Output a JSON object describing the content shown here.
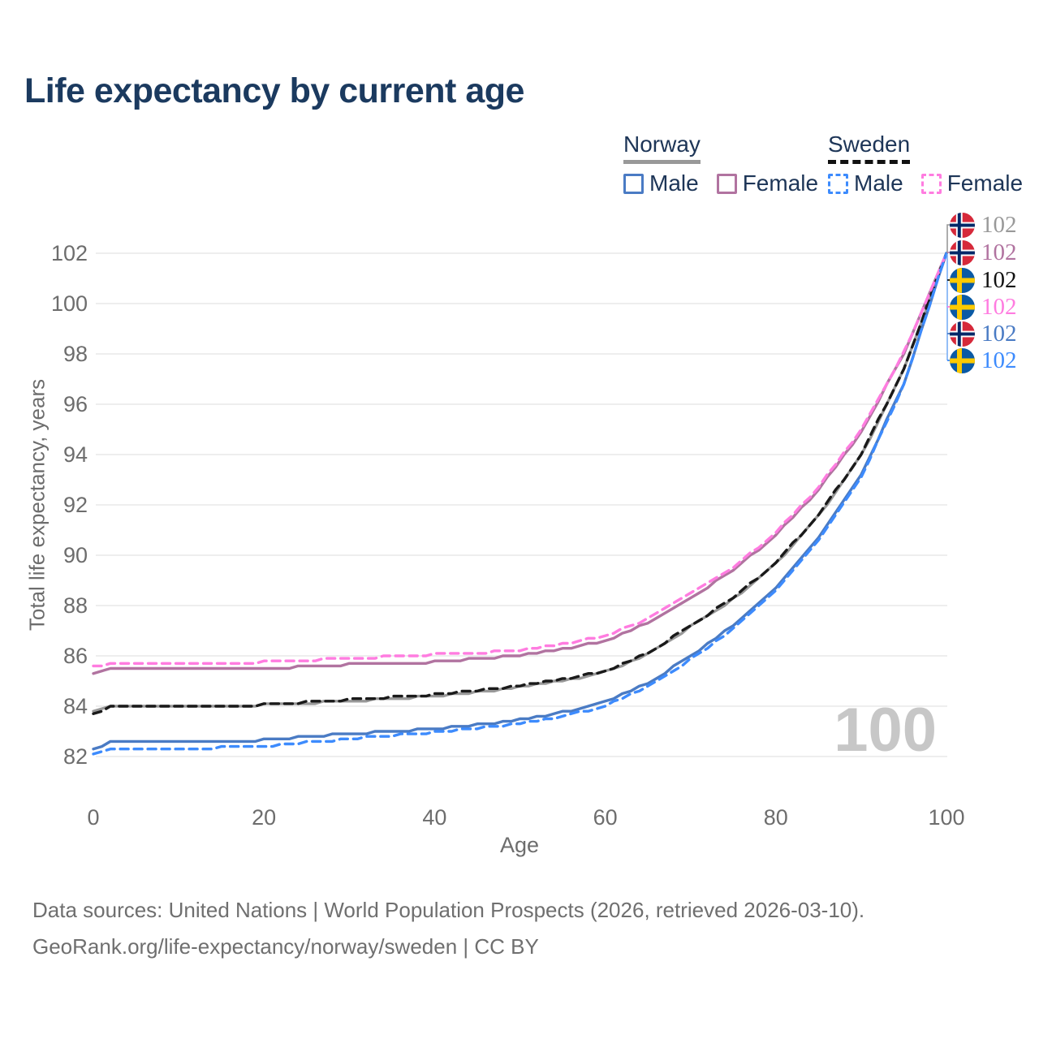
{
  "title": "Life expectancy by current age",
  "legend": {
    "groups": [
      {
        "label": "Norway",
        "line_style": "solid",
        "underline_color": "#999999",
        "items": [
          {
            "label": "Male",
            "color": "#4a7bc4",
            "dashed": false
          },
          {
            "label": "Female",
            "color": "#b173a0",
            "dashed": false
          }
        ]
      },
      {
        "label": "Sweden",
        "line_style": "dashed",
        "underline_color": "#111111",
        "items": [
          {
            "label": "Male",
            "color": "#3d8bfd",
            "dashed": true
          },
          {
            "label": "Female",
            "color": "#ff7ce0",
            "dashed": true
          }
        ]
      }
    ]
  },
  "chart_data": {
    "type": "line",
    "title": "Life expectancy by current age",
    "xlabel": "Age",
    "ylabel": "Total life expectancy, years",
    "x_ticks": [
      0,
      20,
      40,
      60,
      80,
      100
    ],
    "y_ticks": [
      82,
      84,
      86,
      88,
      90,
      92,
      94,
      96,
      98,
      100,
      102
    ],
    "xlim": [
      0,
      100
    ],
    "ylim": [
      81.2,
      103
    ],
    "grid": "horizontal",
    "legend_position": "top-right",
    "x": [
      0,
      2,
      10,
      20,
      30,
      40,
      50,
      55,
      60,
      65,
      70,
      75,
      80,
      85,
      90,
      95,
      100
    ],
    "series": [
      {
        "name": "Norway",
        "country": "norway",
        "group": "all",
        "color": "#999999",
        "dashed": false,
        "values": [
          83.8,
          84.0,
          84.0,
          84.05,
          84.2,
          84.4,
          84.75,
          85.0,
          85.35,
          86.05,
          87.15,
          88.25,
          89.65,
          91.55,
          93.95,
          97.35,
          102
        ]
      },
      {
        "name": "Norway Female",
        "country": "norway",
        "group": "female",
        "color": "#b173a0",
        "dashed": false,
        "values": [
          85.25,
          85.45,
          85.45,
          85.5,
          85.65,
          85.75,
          86.0,
          86.25,
          86.6,
          87.3,
          88.3,
          89.4,
          90.8,
          92.6,
          94.9,
          98.0,
          102
        ]
      },
      {
        "name": "Norway Male",
        "country": "norway",
        "group": "male",
        "color": "#4a7bc4",
        "dashed": false,
        "values": [
          82.3,
          82.55,
          82.55,
          82.65,
          82.9,
          83.1,
          83.45,
          83.75,
          84.15,
          84.9,
          86.0,
          87.2,
          88.7,
          90.7,
          93.2,
          96.8,
          102
        ]
      },
      {
        "name": "Sweden",
        "country": "sweden",
        "group": "all",
        "color": "#1a1a1a",
        "dashed": true,
        "values": [
          83.7,
          83.95,
          83.95,
          84.05,
          84.25,
          84.45,
          84.8,
          85.05,
          85.4,
          86.1,
          87.2,
          88.3,
          89.7,
          91.6,
          94.0,
          97.4,
          102
        ]
      },
      {
        "name": "Sweden Female",
        "country": "sweden",
        "group": "female",
        "color": "#ff7ce0",
        "dashed": true,
        "values": [
          85.55,
          85.65,
          85.7,
          85.75,
          85.9,
          86.05,
          86.2,
          86.45,
          86.8,
          87.45,
          88.45,
          89.5,
          90.9,
          92.7,
          95.0,
          98.05,
          102
        ]
      },
      {
        "name": "Sweden Male",
        "country": "sweden",
        "group": "male",
        "color": "#3d8bfd",
        "dashed": true,
        "values": [
          82.05,
          82.25,
          82.3,
          82.4,
          82.7,
          82.95,
          83.3,
          83.6,
          84.0,
          84.75,
          85.85,
          87.05,
          88.6,
          90.6,
          93.1,
          96.75,
          102
        ]
      }
    ]
  },
  "end_labels": {
    "rows": [
      {
        "country": "norway",
        "series": "Norway",
        "value": "102",
        "color": "#999999"
      },
      {
        "country": "norway",
        "series": "Norway Female",
        "value": "102",
        "color": "#b173a0"
      },
      {
        "country": "sweden",
        "series": "Sweden",
        "value": "102",
        "color": "#111111"
      },
      {
        "country": "sweden",
        "series": "Sweden Female",
        "value": "102",
        "color": "#ff7ce0"
      },
      {
        "country": "norway",
        "series": "Norway Male",
        "value": "102",
        "color": "#4a7bc4"
      },
      {
        "country": "sweden",
        "series": "Sweden Male",
        "value": "102",
        "color": "#3d8bfd"
      }
    ]
  },
  "watermark": "100",
  "footer": {
    "line1": "Data sources: United Nations | World Population Prospects (2026, retrieved 2026-03-10).",
    "line2": "GeoRank.org/life-expectancy/norway/sweden | CC BY"
  }
}
